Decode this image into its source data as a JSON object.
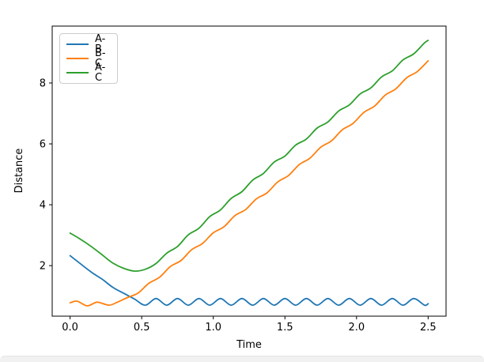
{
  "figure": {
    "background_color": "#ffffff",
    "bottom_edge_color": "#f1f1f2"
  },
  "chart_data": {
    "type": "line",
    "title": "",
    "xlabel": "Time",
    "ylabel": "Distance",
    "xlim": [
      -0.125,
      2.625
    ],
    "ylim": [
      0.34,
      9.87
    ],
    "grid": false,
    "x_ticks": [
      0.0,
      0.5,
      1.0,
      1.5,
      2.0,
      2.5
    ],
    "x_tick_labels": [
      "0.0",
      "0.5",
      "1.0",
      "1.5",
      "2.0",
      "2.5"
    ],
    "y_ticks": [
      2,
      4,
      6,
      8
    ],
    "y_tick_labels": [
      "2",
      "4",
      "6",
      "8"
    ],
    "legend": {
      "position": "upper left",
      "entries": [
        "A-B",
        "B-C",
        "A-C"
      ]
    },
    "axis_color": "#000000",
    "series": [
      {
        "name": "A-B",
        "color": "#1f77b4",
        "points": [
          [
            0,
            2.33
          ],
          [
            0.075,
            2.05
          ],
          [
            0.15,
            1.78
          ],
          [
            0.225,
            1.55
          ],
          [
            0.3,
            1.28
          ],
          [
            0.375,
            1.09
          ],
          [
            0.45,
            0.9
          ],
          [
            0.525,
            0.7
          ],
          [
            0.6,
            0.92
          ],
          [
            0.675,
            0.7
          ],
          [
            0.75,
            0.92
          ],
          [
            0.825,
            0.7
          ],
          [
            0.9,
            0.92
          ],
          [
            0.975,
            0.7
          ],
          [
            1.05,
            0.92
          ],
          [
            1.125,
            0.7
          ],
          [
            1.2,
            0.92
          ],
          [
            1.275,
            0.7
          ],
          [
            1.35,
            0.92
          ],
          [
            1.425,
            0.7
          ],
          [
            1.5,
            0.92
          ],
          [
            1.575,
            0.7
          ],
          [
            1.65,
            0.92
          ],
          [
            1.725,
            0.7
          ],
          [
            1.8,
            0.92
          ],
          [
            1.875,
            0.7
          ],
          [
            1.95,
            0.92
          ],
          [
            2.025,
            0.7
          ],
          [
            2.1,
            0.92
          ],
          [
            2.175,
            0.7
          ],
          [
            2.25,
            0.92
          ],
          [
            2.325,
            0.7
          ],
          [
            2.4,
            0.92
          ],
          [
            2.475,
            0.7
          ],
          [
            2.5,
            0.75
          ]
        ]
      },
      {
        "name": "B-C",
        "color": "#ff7f0e",
        "points": [
          [
            0,
            0.78
          ],
          [
            0.05,
            0.83
          ],
          [
            0.12,
            0.68
          ],
          [
            0.19,
            0.8
          ],
          [
            0.27,
            0.7
          ],
          [
            0.33,
            0.8
          ],
          [
            0.4,
            0.95
          ],
          [
            0.475,
            1.1
          ],
          [
            0.55,
            1.42
          ],
          [
            0.625,
            1.62
          ],
          [
            0.7,
            1.97
          ],
          [
            0.775,
            2.17
          ],
          [
            0.85,
            2.53
          ],
          [
            0.925,
            2.73
          ],
          [
            1,
            3.08
          ],
          [
            1.075,
            3.28
          ],
          [
            1.15,
            3.64
          ],
          [
            1.225,
            3.84
          ],
          [
            1.3,
            4.19
          ],
          [
            1.375,
            4.39
          ],
          [
            1.45,
            4.75
          ],
          [
            1.525,
            4.96
          ],
          [
            1.6,
            5.32
          ],
          [
            1.675,
            5.53
          ],
          [
            1.75,
            5.89
          ],
          [
            1.825,
            6.1
          ],
          [
            1.9,
            6.46
          ],
          [
            1.975,
            6.67
          ],
          [
            2.05,
            7.03
          ],
          [
            2.125,
            7.24
          ],
          [
            2.2,
            7.6
          ],
          [
            2.275,
            7.81
          ],
          [
            2.35,
            8.17
          ],
          [
            2.425,
            8.38
          ],
          [
            2.5,
            8.73
          ]
        ]
      },
      {
        "name": "A-C",
        "color": "#2ca02c",
        "points": [
          [
            0,
            3.07
          ],
          [
            0.075,
            2.86
          ],
          [
            0.15,
            2.62
          ],
          [
            0.225,
            2.35
          ],
          [
            0.3,
            2.08
          ],
          [
            0.375,
            1.91
          ],
          [
            0.45,
            1.82
          ],
          [
            0.525,
            1.88
          ],
          [
            0.6,
            2.07
          ],
          [
            0.675,
            2.41
          ],
          [
            0.75,
            2.63
          ],
          [
            0.825,
            3.01
          ],
          [
            0.9,
            3.23
          ],
          [
            0.975,
            3.61
          ],
          [
            1.05,
            3.83
          ],
          [
            1.125,
            4.21
          ],
          [
            1.2,
            4.43
          ],
          [
            1.275,
            4.81
          ],
          [
            1.35,
            5.03
          ],
          [
            1.425,
            5.4
          ],
          [
            1.5,
            5.6
          ],
          [
            1.575,
            5.96
          ],
          [
            1.65,
            6.16
          ],
          [
            1.725,
            6.52
          ],
          [
            1.8,
            6.72
          ],
          [
            1.875,
            7.08
          ],
          [
            1.95,
            7.28
          ],
          [
            2.025,
            7.64
          ],
          [
            2.1,
            7.84
          ],
          [
            2.175,
            8.2
          ],
          [
            2.25,
            8.4
          ],
          [
            2.325,
            8.76
          ],
          [
            2.4,
            8.96
          ],
          [
            2.475,
            9.32
          ],
          [
            2.5,
            9.4
          ]
        ]
      }
    ]
  }
}
